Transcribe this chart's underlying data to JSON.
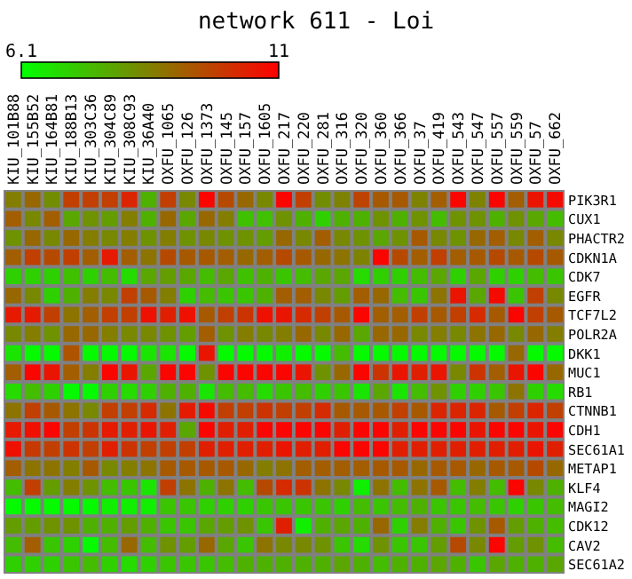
{
  "chart_data": {
    "type": "heatmap",
    "title": "network 611 - Loi",
    "categories": [
      "KIU_101B88",
      "KIU_155B52",
      "KIU_164B81",
      "KIU_188B13",
      "KIU_303C36",
      "KIU_304C89",
      "KIU_308C93",
      "KIU_36A40",
      "OXFU_1065",
      "OXFU_126",
      "OXFU_1373",
      "OXFU_145",
      "OXFU_157",
      "OXFU_1605",
      "OXFU_217",
      "OXFU_220",
      "OXFU_281",
      "OXFU_316",
      "OXFU_320",
      "OXFU_360",
      "OXFU_366",
      "OXFU_37",
      "OXFU_419",
      "OXFU_543",
      "OXFU_547",
      "OXFU_557",
      "OXFU_559",
      "OXFU_57",
      "OXFU_662"
    ],
    "y_categories": [
      "PIK3R1",
      "CUX1",
      "PHACTR2",
      "CDKN1A",
      "CDK7",
      "EGFR",
      "TCF7L2",
      "POLR2A",
      "DKK1",
      "MUC1",
      "RB1",
      "CTNNB1",
      "CDH1",
      "SEC61A1",
      "METAP1",
      "KLF4",
      "MAGI2",
      "CDK12",
      "CAV2",
      "SEC61A2"
    ],
    "cells": [
      [
        8.6,
        9.0,
        8.3,
        9.8,
        9.8,
        9.8,
        10.3,
        7.6,
        9.8,
        8.4,
        10.9,
        9.6,
        9.0,
        8.4,
        10.9,
        9.8,
        8.3,
        8.5,
        9.7,
        9.3,
        9.3,
        8.5,
        9.2,
        10.9,
        8.5,
        10.9,
        9.2,
        10.6,
        10.8
      ],
      [
        9.2,
        8.4,
        9.2,
        7.8,
        8.2,
        8.0,
        8.6,
        7.6,
        9.0,
        7.8,
        9.0,
        8.6,
        7.3,
        7.3,
        8.2,
        7.6,
        7.0,
        7.6,
        7.6,
        8.2,
        7.6,
        8.2,
        7.4,
        8.2,
        8.2,
        7.6,
        8.2,
        7.8,
        7.4
      ],
      [
        8.2,
        9.0,
        8.4,
        9.0,
        8.6,
        8.4,
        8.6,
        8.2,
        8.6,
        8.2,
        8.4,
        8.2,
        8.2,
        8.0,
        9.0,
        8.4,
        9.2,
        8.4,
        8.2,
        7.8,
        8.2,
        9.3,
        8.4,
        8.2,
        9.0,
        9.2,
        8.4,
        9.2,
        8.4
      ],
      [
        9.2,
        9.8,
        9.6,
        9.8,
        9.2,
        10.5,
        9.2,
        8.8,
        9.6,
        9.3,
        9.3,
        9.2,
        9.0,
        9.2,
        9.6,
        9.3,
        9.0,
        8.8,
        8.5,
        10.9,
        9.6,
        9.2,
        9.8,
        9.2,
        9.3,
        9.6,
        9.3,
        9.6,
        9.3
      ],
      [
        7.0,
        7.0,
        7.0,
        7.3,
        7.0,
        7.4,
        6.8,
        7.8,
        8.0,
        7.8,
        7.4,
        7.8,
        7.3,
        7.6,
        7.2,
        7.4,
        7.8,
        7.8,
        6.8,
        7.0,
        7.0,
        7.4,
        7.8,
        7.0,
        7.8,
        7.0,
        7.0,
        7.4,
        7.2
      ],
      [
        9.0,
        8.4,
        7.0,
        7.6,
        8.6,
        8.4,
        9.8,
        9.3,
        8.6,
        7.0,
        7.4,
        7.2,
        7.2,
        7.6,
        9.2,
        9.2,
        8.4,
        8.0,
        9.2,
        9.0,
        7.4,
        7.2,
        8.8,
        10.6,
        7.8,
        10.8,
        7.2,
        9.8,
        8.4
      ],
      [
        10.5,
        10.5,
        9.8,
        8.8,
        9.2,
        9.8,
        9.8,
        10.7,
        10.4,
        10.7,
        9.3,
        9.8,
        10.0,
        10.7,
        10.6,
        10.2,
        9.8,
        9.3,
        10.9,
        9.2,
        9.2,
        9.8,
        9.3,
        9.8,
        10.2,
        9.3,
        10.9,
        9.8,
        9.3
      ],
      [
        8.4,
        8.6,
        8.2,
        9.0,
        9.0,
        8.6,
        8.4,
        8.4,
        8.2,
        8.0,
        9.2,
        8.2,
        8.6,
        8.4,
        8.6,
        9.0,
        8.4,
        9.0,
        7.8,
        9.0,
        9.0,
        8.4,
        8.6,
        8.4,
        8.8,
        9.0,
        8.4,
        9.0,
        8.6
      ],
      [
        6.6,
        6.2,
        6.2,
        9.4,
        6.2,
        6.2,
        6.2,
        6.6,
        6.6,
        6.2,
        10.6,
        6.2,
        6.2,
        6.2,
        6.4,
        6.2,
        6.2,
        7.4,
        6.2,
        6.2,
        6.2,
        6.2,
        6.2,
        6.2,
        6.2,
        6.2,
        9.0,
        6.2,
        6.2
      ],
      [
        9.2,
        10.9,
        10.6,
        9.2,
        8.6,
        10.9,
        10.6,
        7.8,
        10.9,
        10.9,
        8.2,
        10.9,
        10.9,
        10.9,
        10.9,
        10.6,
        8.2,
        9.0,
        10.9,
        10.0,
        10.6,
        10.4,
        10.6,
        8.4,
        10.0,
        9.2,
        10.6,
        10.9,
        9.0
      ],
      [
        6.8,
        7.4,
        7.0,
        6.2,
        6.2,
        7.0,
        6.8,
        7.0,
        7.6,
        7.6,
        6.6,
        7.4,
        7.4,
        6.8,
        7.2,
        7.4,
        7.0,
        7.2,
        6.6,
        7.8,
        6.6,
        7.4,
        8.2,
        7.0,
        7.0,
        7.2,
        8.8,
        7.0,
        6.8
      ],
      [
        8.8,
        9.8,
        9.3,
        8.8,
        8.4,
        9.8,
        9.8,
        10.2,
        8.8,
        10.5,
        10.8,
        9.8,
        9.8,
        10.0,
        9.8,
        9.8,
        10.2,
        9.3,
        9.3,
        9.3,
        9.8,
        9.3,
        10.3,
        10.3,
        10.3,
        9.3,
        9.8,
        10.3,
        9.8
      ],
      [
        10.5,
        10.7,
        10.9,
        9.8,
        10.0,
        10.5,
        10.4,
        10.6,
        10.4,
        7.8,
        10.9,
        10.4,
        10.4,
        10.9,
        10.9,
        10.9,
        10.9,
        10.4,
        10.9,
        10.9,
        10.4,
        10.9,
        10.9,
        10.9,
        10.6,
        10.9,
        10.9,
        10.6,
        10.9
      ],
      [
        10.7,
        9.9,
        9.8,
        10.0,
        9.8,
        10.4,
        10.0,
        9.8,
        9.8,
        9.8,
        10.4,
        10.4,
        10.4,
        10.4,
        10.6,
        10.4,
        10.4,
        10.9,
        10.9,
        10.9,
        10.4,
        10.4,
        10.4,
        10.4,
        10.4,
        10.4,
        10.4,
        10.6,
        10.4
      ],
      [
        9.2,
        8.8,
        8.8,
        8.6,
        9.3,
        8.4,
        8.6,
        8.8,
        9.3,
        9.3,
        9.3,
        9.3,
        9.0,
        8.6,
        8.8,
        9.2,
        9.2,
        9.2,
        9.2,
        9.3,
        9.3,
        9.0,
        9.3,
        9.3,
        9.0,
        9.3,
        9.3,
        9.6,
        9.0
      ],
      [
        7.4,
        9.8,
        8.0,
        8.6,
        8.2,
        7.4,
        7.2,
        6.6,
        9.8,
        8.8,
        7.6,
        8.8,
        7.4,
        9.6,
        10.2,
        10.0,
        8.8,
        8.4,
        6.4,
        8.8,
        7.4,
        8.8,
        9.3,
        7.4,
        8.6,
        7.4,
        10.9,
        8.4,
        7.6
      ],
      [
        6.2,
        6.2,
        6.2,
        6.2,
        6.2,
        6.4,
        6.4,
        6.4,
        7.2,
        7.2,
        7.0,
        7.0,
        7.0,
        7.2,
        7.2,
        7.2,
        7.2,
        7.0,
        7.4,
        7.2,
        7.4,
        7.6,
        7.2,
        7.2,
        7.4,
        7.2,
        7.0,
        7.2,
        7.4
      ],
      [
        8.0,
        8.0,
        8.2,
        8.2,
        7.6,
        7.6,
        8.0,
        7.6,
        7.2,
        7.2,
        7.8,
        8.0,
        8.2,
        7.2,
        10.4,
        6.4,
        7.6,
        7.8,
        7.6,
        9.0,
        7.0,
        8.6,
        7.6,
        7.2,
        8.2,
        9.3,
        8.0,
        7.6,
        7.4
      ],
      [
        7.4,
        9.2,
        7.2,
        7.0,
        6.2,
        7.4,
        9.0,
        7.4,
        8.2,
        8.0,
        9.0,
        7.8,
        7.2,
        8.8,
        8.4,
        8.4,
        8.2,
        7.2,
        6.8,
        8.2,
        7.2,
        7.2,
        8.0,
        9.6,
        8.4,
        10.9,
        8.0,
        8.2,
        7.4
      ],
      [
        7.0,
        7.0,
        7.0,
        7.2,
        7.4,
        7.0,
        6.8,
        7.0,
        7.2,
        7.2,
        7.2,
        7.4,
        7.6,
        7.6,
        7.6,
        7.6,
        7.6,
        7.8,
        7.6,
        7.4,
        7.6,
        7.6,
        7.8,
        7.6,
        7.2,
        7.8,
        7.6,
        7.6,
        7.8
      ]
    ],
    "clim": [
      6.1,
      11
    ],
    "cticks": [
      6.1,
      11
    ]
  }
}
